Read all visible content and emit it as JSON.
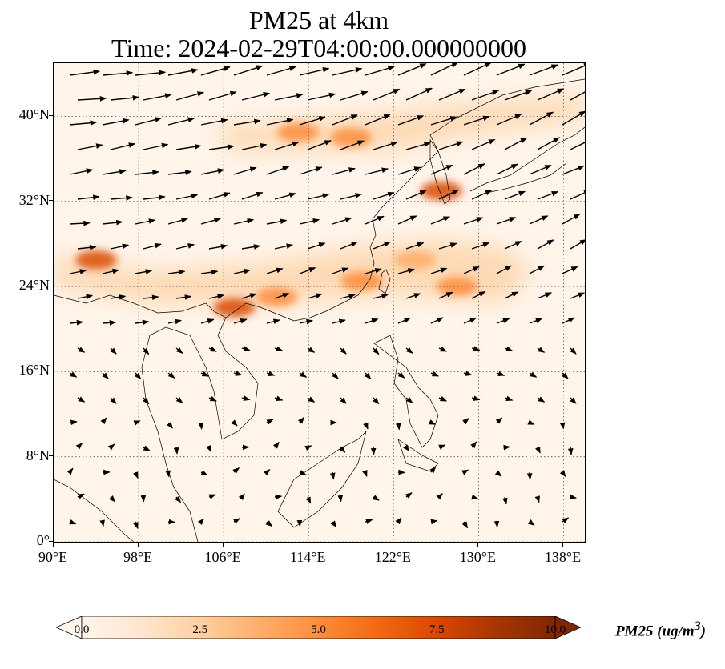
{
  "title": {
    "line1": "PM25 at 4km",
    "line2": "Time: 2024-02-29T04:00:00.000000000"
  },
  "map": {
    "extent": {
      "lon_min": 90,
      "lon_max": 140,
      "lat_min": 0,
      "lat_max": 45
    },
    "lat_ticks": [
      {
        "value": 0,
        "label": "0°"
      },
      {
        "value": 8,
        "label": "8°N"
      },
      {
        "value": 16,
        "label": "16°N"
      },
      {
        "value": 24,
        "label": "24°N"
      },
      {
        "value": 32,
        "label": "32°N"
      },
      {
        "value": 40,
        "label": "40°N"
      }
    ],
    "lon_ticks": [
      {
        "value": 90,
        "label": "90°E"
      },
      {
        "value": 98,
        "label": "98°E"
      },
      {
        "value": 106,
        "label": "106°E"
      },
      {
        "value": 114,
        "label": "114°E"
      },
      {
        "value": 122,
        "label": "122°E"
      },
      {
        "value": 130,
        "label": "130°E"
      },
      {
        "value": 138,
        "label": "138°E"
      }
    ],
    "gridlines": true,
    "pollution_hotspots": [
      {
        "lon": 94,
        "lat": 26.5,
        "level": 7.5
      },
      {
        "lon": 107,
        "lat": 22.0,
        "level": 7.0
      },
      {
        "lon": 111,
        "lat": 23.0,
        "level": 5.5
      },
      {
        "lon": 119,
        "lat": 24.5,
        "level": 5.5
      },
      {
        "lon": 126.5,
        "lat": 33.0,
        "level": 8.0
      },
      {
        "lon": 113,
        "lat": 38.5,
        "level": 5.0
      },
      {
        "lon": 118,
        "lat": 38.0,
        "level": 5.5
      },
      {
        "lon": 128,
        "lat": 24.0,
        "level": 4.5
      },
      {
        "lon": 124,
        "lat": 26.5,
        "level": 4.0
      }
    ]
  },
  "colorbar": {
    "min": 0,
    "max": 10,
    "ticks": [
      "0.0",
      "2.5",
      "5.0",
      "7.5",
      "10.0"
    ],
    "colors": [
      "#fff5eb",
      "#fee6ce",
      "#fdd0a2",
      "#fdae6b",
      "#fd8d3c",
      "#f16913",
      "#d94801",
      "#a63603",
      "#7f2704"
    ],
    "label": "PM25 (ug/m$^3$)",
    "label_display": "PM25 (ug/m",
    "label_sup": "3",
    "label_close": ")"
  }
}
